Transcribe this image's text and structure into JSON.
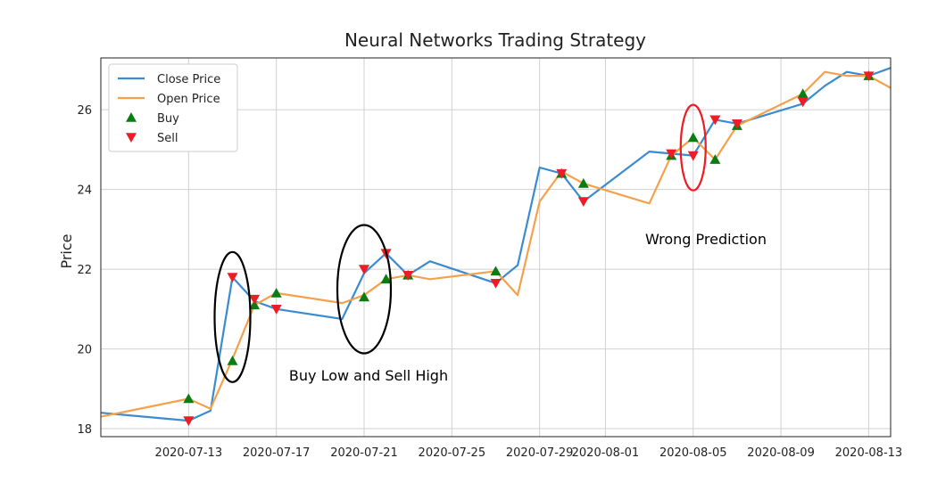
{
  "chart_data": {
    "type": "line",
    "title": "Neural Networks Trading Strategy",
    "xlabel": "",
    "ylabel": "Price",
    "x_ticks": [
      "2020-07-13",
      "2020-07-17",
      "2020-07-21",
      "2020-07-25",
      "2020-07-29",
      "2020-08-01",
      "2020-08-05",
      "2020-08-09",
      "2020-08-13"
    ],
    "y_ticks": [
      18,
      20,
      22,
      24,
      26
    ],
    "xlim": [
      "2020-07-09",
      "2020-08-14"
    ],
    "ylim": [
      17.8,
      27.3
    ],
    "grid": true,
    "legend_position": "top-left",
    "series": [
      {
        "name": "Close Price",
        "color": "#3b8bd0",
        "points": [
          [
            "2020-07-09",
            18.4
          ],
          [
            "2020-07-13",
            18.2
          ],
          [
            "2020-07-14",
            18.45
          ],
          [
            "2020-07-15",
            21.8
          ],
          [
            "2020-07-16",
            21.2
          ],
          [
            "2020-07-17",
            21.0
          ],
          [
            "2020-07-20",
            20.75
          ],
          [
            "2020-07-21",
            21.9
          ],
          [
            "2020-07-22",
            22.4
          ],
          [
            "2020-07-23",
            21.85
          ],
          [
            "2020-07-24",
            22.2
          ],
          [
            "2020-07-27",
            21.65
          ],
          [
            "2020-07-28",
            22.1
          ],
          [
            "2020-07-29",
            24.55
          ],
          [
            "2020-07-30",
            24.4
          ],
          [
            "2020-07-31",
            23.7
          ],
          [
            "2020-08-03",
            24.95
          ],
          [
            "2020-08-04",
            24.9
          ],
          [
            "2020-08-05",
            24.85
          ],
          [
            "2020-08-06",
            25.75
          ],
          [
            "2020-08-07",
            25.65
          ],
          [
            "2020-08-10",
            26.15
          ],
          [
            "2020-08-11",
            26.6
          ],
          [
            "2020-08-12",
            26.95
          ],
          [
            "2020-08-13",
            26.85
          ],
          [
            "2020-08-14",
            27.05
          ]
        ]
      },
      {
        "name": "Open Price",
        "color": "#f5a14c",
        "points": [
          [
            "2020-07-09",
            18.3
          ],
          [
            "2020-07-13",
            18.75
          ],
          [
            "2020-07-14",
            18.5
          ],
          [
            "2020-07-15",
            19.75
          ],
          [
            "2020-07-16",
            21.1
          ],
          [
            "2020-07-17",
            21.4
          ],
          [
            "2020-07-20",
            21.15
          ],
          [
            "2020-07-21",
            21.35
          ],
          [
            "2020-07-22",
            21.75
          ],
          [
            "2020-07-23",
            21.85
          ],
          [
            "2020-07-24",
            21.75
          ],
          [
            "2020-07-27",
            21.95
          ],
          [
            "2020-07-28",
            21.35
          ],
          [
            "2020-07-29",
            23.7
          ],
          [
            "2020-07-30",
            24.45
          ],
          [
            "2020-07-31",
            24.15
          ],
          [
            "2020-08-03",
            23.65
          ],
          [
            "2020-08-04",
            24.85
          ],
          [
            "2020-08-05",
            25.3
          ],
          [
            "2020-08-06",
            24.75
          ],
          [
            "2020-08-07",
            25.6
          ],
          [
            "2020-08-10",
            26.4
          ],
          [
            "2020-08-11",
            26.95
          ],
          [
            "2020-08-12",
            26.85
          ],
          [
            "2020-08-13",
            26.85
          ],
          [
            "2020-08-14",
            26.55
          ]
        ]
      }
    ],
    "buy_signals": {
      "name": "Buy",
      "color": "#0a7d12",
      "points": [
        [
          "2020-07-13",
          18.75
        ],
        [
          "2020-07-15",
          19.7
        ],
        [
          "2020-07-16",
          21.1
        ],
        [
          "2020-07-17",
          21.4
        ],
        [
          "2020-07-21",
          21.3
        ],
        [
          "2020-07-22",
          21.75
        ],
        [
          "2020-07-23",
          21.85
        ],
        [
          "2020-07-27",
          21.95
        ],
        [
          "2020-07-30",
          24.4
        ],
        [
          "2020-07-31",
          24.15
        ],
        [
          "2020-08-04",
          24.85
        ],
        [
          "2020-08-05",
          25.3
        ],
        [
          "2020-08-06",
          24.75
        ],
        [
          "2020-08-07",
          25.6
        ],
        [
          "2020-08-10",
          26.4
        ],
        [
          "2020-08-13",
          26.85
        ]
      ]
    },
    "sell_signals": {
      "name": "Sell",
      "color": "#ee1c24",
      "points": [
        [
          "2020-07-13",
          18.2
        ],
        [
          "2020-07-15",
          21.8
        ],
        [
          "2020-07-16",
          21.25
        ],
        [
          "2020-07-17",
          21.0
        ],
        [
          "2020-07-21",
          22.0
        ],
        [
          "2020-07-22",
          22.4
        ],
        [
          "2020-07-23",
          21.85
        ],
        [
          "2020-07-27",
          21.65
        ],
        [
          "2020-07-30",
          24.4
        ],
        [
          "2020-07-31",
          23.7
        ],
        [
          "2020-08-04",
          24.9
        ],
        [
          "2020-08-05",
          24.85
        ],
        [
          "2020-08-06",
          25.75
        ],
        [
          "2020-08-07",
          25.65
        ],
        [
          "2020-08-10",
          26.2
        ],
        [
          "2020-08-13",
          26.85
        ]
      ]
    },
    "annotations": [
      {
        "text": "Buy Low and Sell High"
      },
      {
        "text": "Wrong Prediction"
      }
    ],
    "highlight_ellipses": [
      {
        "center": [
          "2020-07-15",
          20.8
        ],
        "color": "#000000"
      },
      {
        "center": [
          "2020-07-21",
          21.5
        ],
        "color": "#000000"
      },
      {
        "center": [
          "2020-08-05",
          25.05
        ],
        "color": "#ee1c24"
      }
    ]
  }
}
